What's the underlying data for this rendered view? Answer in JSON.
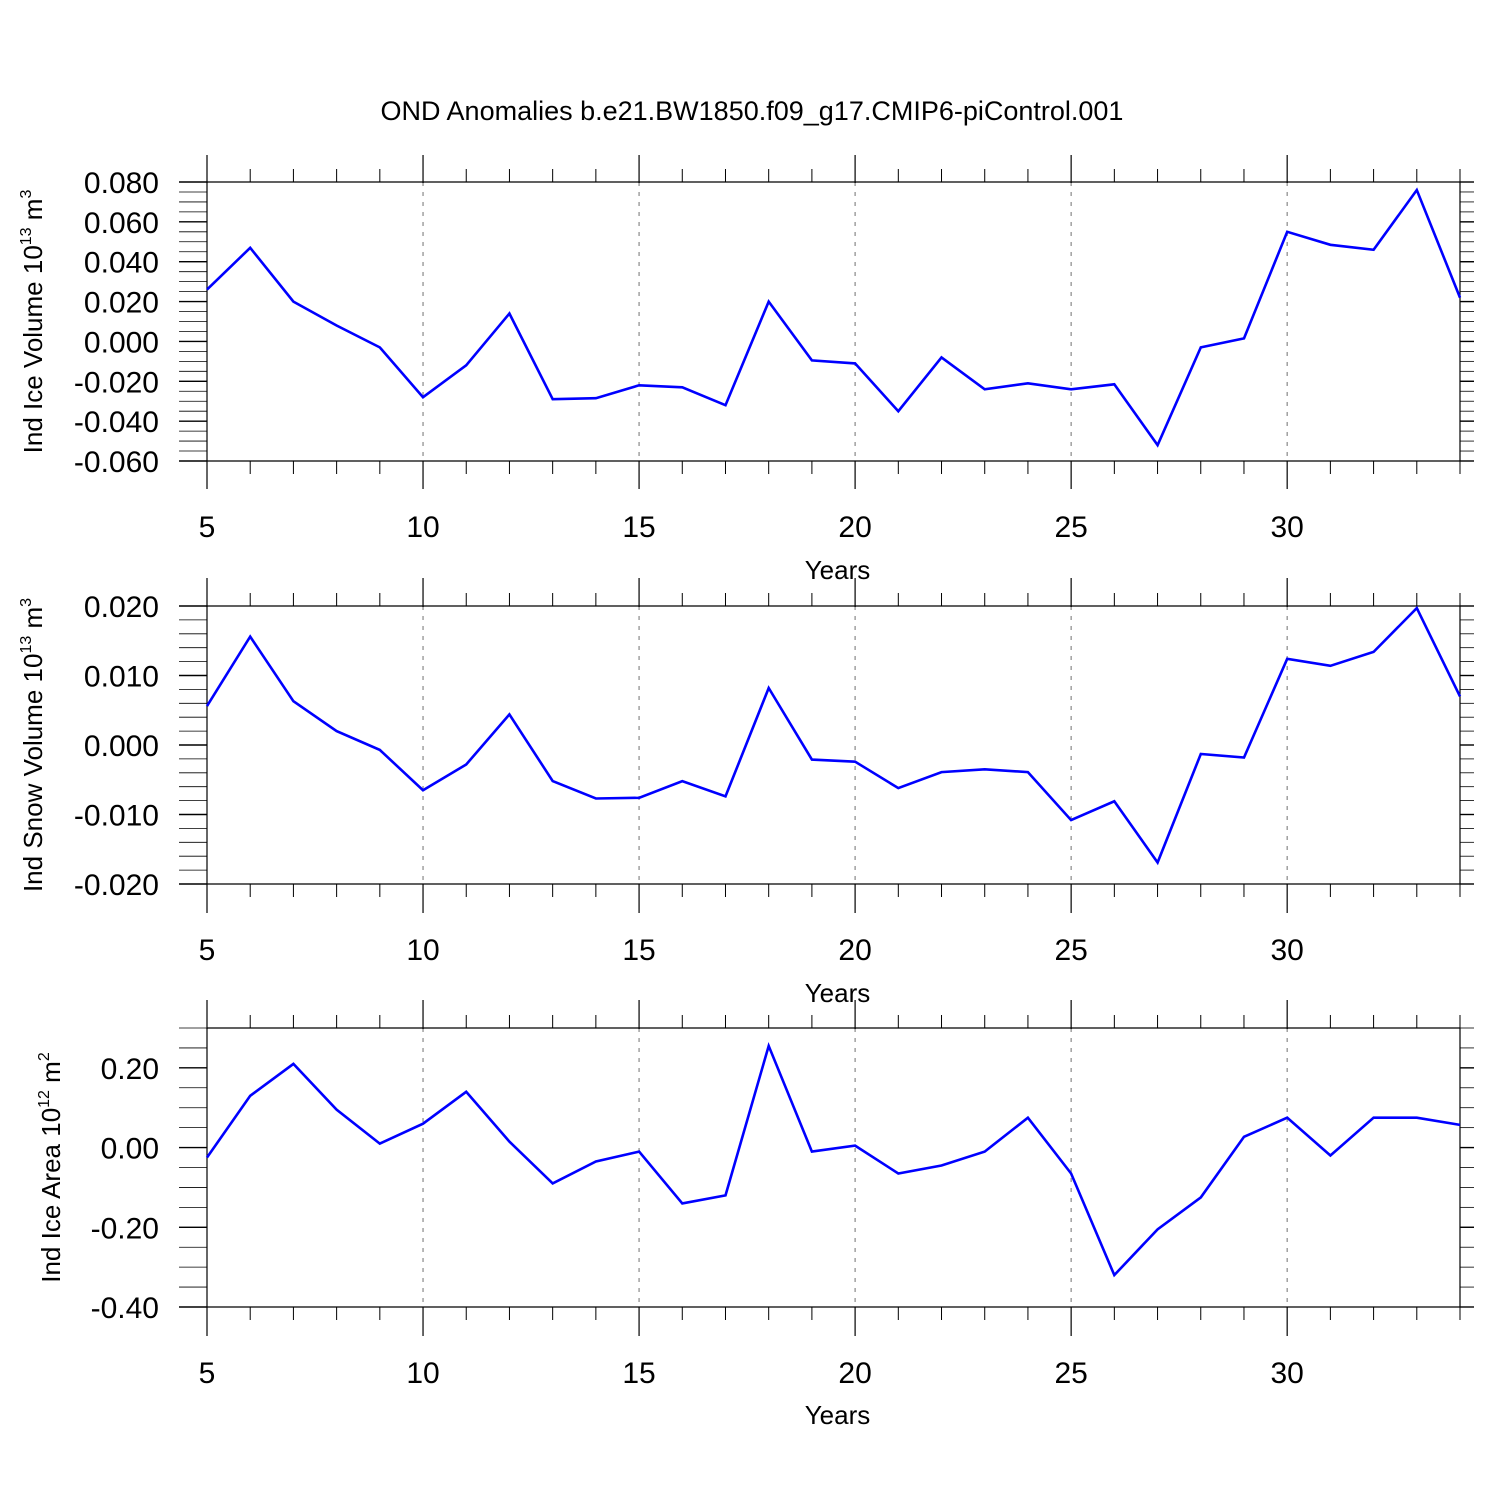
{
  "title": "OND Anomalies b.e21.BW1850.f09_g17.CMIP6-piControl.001",
  "chart_data": [
    {
      "type": "line",
      "ylabel": {
        "base": "Ind Ice Volume 10",
        "exp": "13",
        "unit": " m",
        "unit_exp": "3"
      },
      "xlabel": "Years",
      "xlim": [
        5,
        34
      ],
      "ylim": [
        -0.06,
        0.08
      ],
      "xticks": [
        "5",
        "10",
        "15",
        "20",
        "25",
        "30"
      ],
      "yticks": [
        "0.080",
        "0.060",
        "0.040",
        "0.020",
        "0.000",
        "-0.020",
        "-0.040",
        "-0.060"
      ],
      "grid": "vertical dashed at major x ticks",
      "color": "#0000ff",
      "x": [
        5,
        6,
        7,
        8,
        9,
        10,
        11,
        12,
        13,
        14,
        15,
        16,
        17,
        18,
        19,
        20,
        21,
        22,
        23,
        24,
        25,
        26,
        27,
        28,
        29,
        30,
        31,
        32,
        33,
        34
      ],
      "values": [
        0.026,
        0.047,
        0.02,
        0.008,
        -0.003,
        -0.028,
        -0.012,
        0.014,
        -0.029,
        -0.0285,
        -0.022,
        -0.023,
        -0.032,
        0.02,
        -0.0095,
        -0.011,
        -0.035,
        -0.008,
        -0.024,
        -0.021,
        -0.024,
        -0.0215,
        -0.052,
        -0.003,
        0.0015,
        0.055,
        0.0485,
        0.046,
        0.076,
        0.022
      ]
    },
    {
      "type": "line",
      "ylabel": {
        "base": "Ind Snow Volume 10",
        "exp": "13",
        "unit": " m",
        "unit_exp": "3"
      },
      "xlabel": "Years",
      "xlim": [
        5,
        34
      ],
      "ylim": [
        -0.02,
        0.02
      ],
      "xticks": [
        "5",
        "10",
        "15",
        "20",
        "25",
        "30"
      ],
      "yticks": [
        "0.020",
        "0.010",
        "0.000",
        "-0.010",
        "-0.020"
      ],
      "grid": "vertical dashed at major x ticks",
      "color": "#0000ff",
      "x": [
        5,
        6,
        7,
        8,
        9,
        10,
        11,
        12,
        13,
        14,
        15,
        16,
        17,
        18,
        19,
        20,
        21,
        22,
        23,
        24,
        25,
        26,
        27,
        28,
        29,
        30,
        31,
        32,
        33,
        34
      ],
      "values": [
        0.0056,
        0.0156,
        0.0063,
        0.002,
        -0.0007,
        -0.0065,
        -0.0028,
        0.0044,
        -0.0052,
        -0.0077,
        -0.0076,
        -0.0052,
        -0.0074,
        0.0082,
        -0.0021,
        -0.0024,
        -0.0062,
        -0.0039,
        -0.0035,
        -0.0039,
        -0.0108,
        -0.0081,
        -0.0169,
        -0.0013,
        -0.0018,
        0.0124,
        0.0114,
        0.0134,
        0.0197,
        0.007
      ]
    },
    {
      "type": "line",
      "ylabel": {
        "base": "Ind Ice Area 10",
        "exp": "12",
        "unit": " m",
        "unit_exp": "2"
      },
      "xlabel": "Years",
      "xlim": [
        5,
        34
      ],
      "ylim": [
        -0.4,
        0.3
      ],
      "xticks": [
        "5",
        "10",
        "15",
        "20",
        "25",
        "30"
      ],
      "yticks": [
        "0.20",
        "0.00",
        "-0.20",
        "-0.40"
      ],
      "grid": "vertical dashed at major x ticks",
      "color": "#0000ff",
      "x": [
        5,
        6,
        7,
        8,
        9,
        10,
        11,
        12,
        13,
        14,
        15,
        16,
        17,
        18,
        19,
        20,
        21,
        22,
        23,
        24,
        25,
        26,
        27,
        28,
        29,
        30,
        31,
        32,
        33,
        34
      ],
      "values": [
        -0.025,
        0.13,
        0.21,
        0.095,
        0.01,
        0.06,
        0.14,
        0.015,
        -0.09,
        -0.035,
        -0.01,
        -0.14,
        -0.12,
        0.255,
        -0.01,
        0.005,
        -0.065,
        -0.045,
        -0.01,
        0.075,
        -0.065,
        -0.32,
        -0.205,
        -0.125,
        0.027,
        0.075,
        -0.02,
        0.075,
        0.075,
        0.057
      ]
    }
  ]
}
